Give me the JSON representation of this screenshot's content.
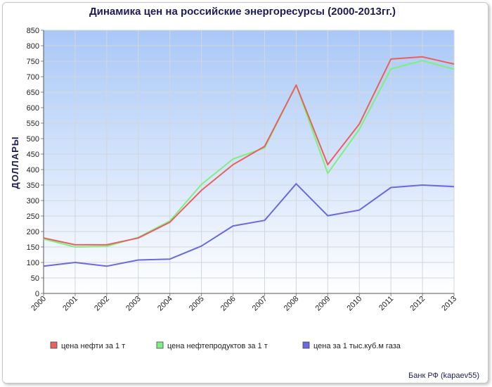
{
  "chart_data": {
    "type": "line",
    "title": "Динамика цен на российские энергоресурсы (2000-2013гг.)",
    "ylabel": "ДОЛЛАРЫ",
    "xlabel": "",
    "x": [
      "2000",
      "2001",
      "2002",
      "2003",
      "2004",
      "2005",
      "2006",
      "2007",
      "2008",
      "2009",
      "2010",
      "2011",
      "2012",
      "2013"
    ],
    "yticks": [
      0,
      50,
      100,
      150,
      200,
      250,
      300,
      350,
      400,
      450,
      500,
      550,
      600,
      650,
      700,
      750,
      800,
      850
    ],
    "ylim": [
      0,
      850
    ],
    "grid": true,
    "legend_position": "bottom",
    "series": [
      {
        "name": "цена нефти за 1 т",
        "color": "#e8615f",
        "values": [
          179,
          157,
          157,
          179,
          230,
          333,
          416,
          475,
          673,
          416,
          547,
          757,
          764,
          741
        ]
      },
      {
        "name": "цена нефтепродуктов за 1 т",
        "color": "#7df07f",
        "values": [
          176,
          150,
          152,
          181,
          234,
          352,
          434,
          470,
          673,
          388,
          530,
          725,
          752,
          724
        ]
      },
      {
        "name": "цена за 1 тыс.куб.м газа",
        "color": "#6a6ae0",
        "values": [
          88,
          100,
          88,
          108,
          111,
          153,
          218,
          236,
          354,
          251,
          269,
          342,
          350,
          345
        ]
      }
    ]
  },
  "credit": "Банк РФ (kapaev55)"
}
